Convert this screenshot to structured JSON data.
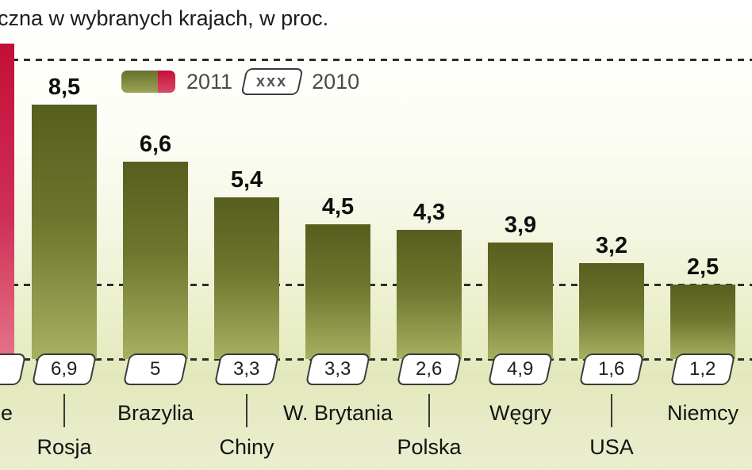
{
  "chart_data": {
    "type": "bar",
    "title": "czna w wybranych krajach, w proc.",
    "legend": {
      "label_2011": "2011",
      "box_placeholder": "xxx",
      "label_2010": "2010"
    },
    "categories": [
      "Rosja",
      "Brazylia",
      "Chiny",
      "W. Brytania",
      "Polska",
      "Węgry",
      "USA",
      "Niemcy"
    ],
    "series": [
      {
        "name": "2011",
        "values": [
          8.5,
          6.6,
          5.4,
          4.5,
          4.3,
          3.9,
          3.2,
          2.5
        ],
        "labels": [
          "8,5",
          "6,6",
          "5,4",
          "4,5",
          "4,3",
          "3,9",
          "3,2",
          "2,5"
        ]
      },
      {
        "name": "2010",
        "values": [
          6.9,
          5,
          3.3,
          3.3,
          2.6,
          4.9,
          1.6,
          1.2
        ],
        "labels": [
          "6,9",
          "5",
          "3,3",
          "3,3",
          "2,6",
          "4,9",
          "1,6",
          "1,2"
        ]
      }
    ],
    "ylim": [
      0,
      10
    ],
    "gridline_values": [
      10,
      2.5,
      0
    ],
    "grid_on": true,
    "legend_position": "top-left",
    "partial_left": {
      "country_fragment": "e",
      "bar_color": "highlight-red",
      "value_label": ""
    },
    "colors": {
      "bar_top": "#575e1e",
      "bar_bottom": "#a8b061",
      "highlight_top": "#c30f38",
      "highlight_bottom": "#e57388",
      "background_bottom": "#e3e8bc",
      "box_border": "#3a3a3a"
    }
  }
}
